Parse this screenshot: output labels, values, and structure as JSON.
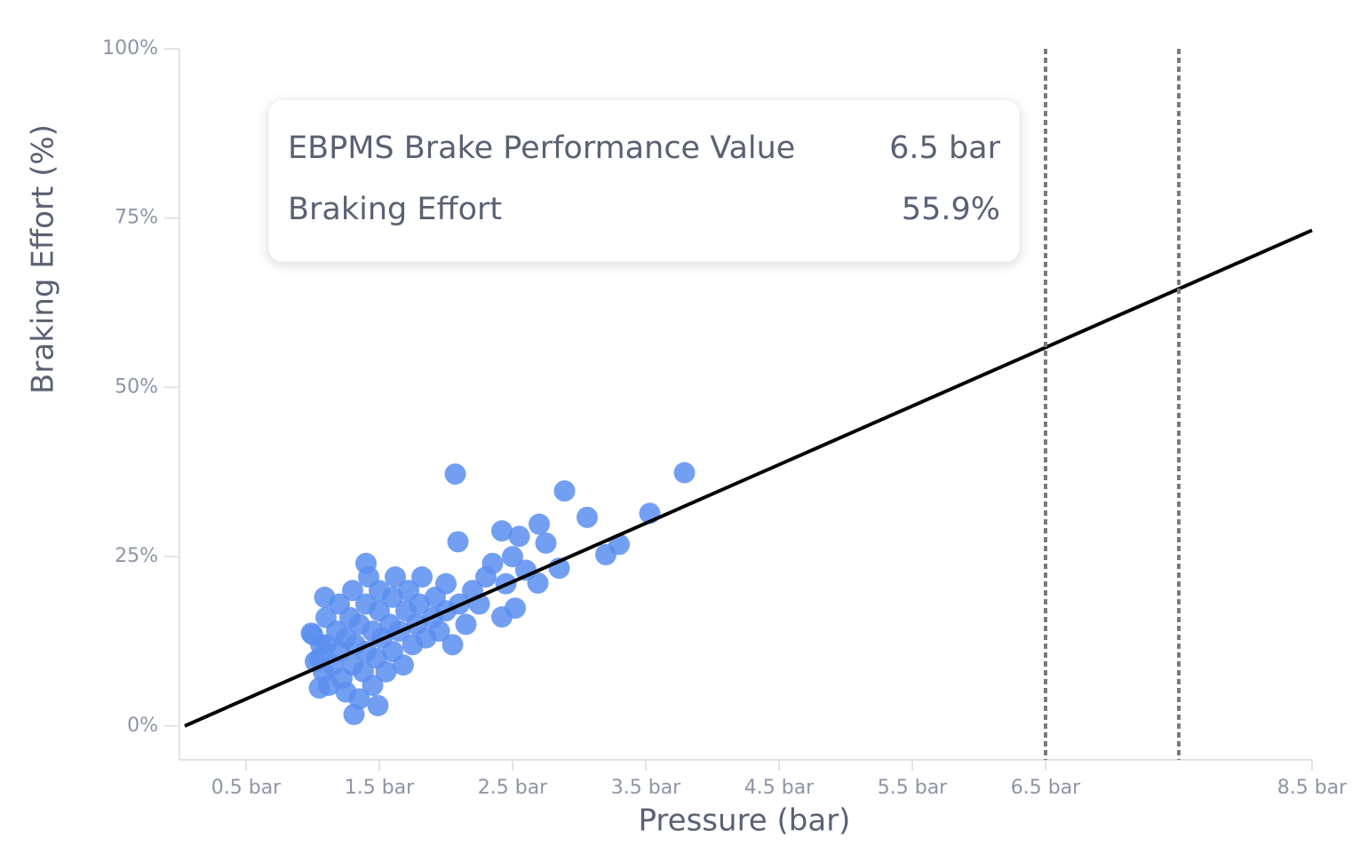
{
  "chart_data": {
    "type": "scatter",
    "x_label": "Pressure (bar)",
    "y_label": "Braking Effort (%)",
    "xlim": [
      0,
      8.5
    ],
    "ylim": [
      -5,
      100
    ],
    "xticks": [
      {
        "value": 0.5,
        "label": "0.5 bar"
      },
      {
        "value": 1.5,
        "label": "1.5 bar"
      },
      {
        "value": 2.5,
        "label": "2.5 bar"
      },
      {
        "value": 3.5,
        "label": "3.5 bar"
      },
      {
        "value": 4.5,
        "label": "4.5 bar"
      },
      {
        "value": 5.5,
        "label": "5.5 bar"
      },
      {
        "value": 6.5,
        "label": "6.5 bar"
      },
      {
        "value": 8.5,
        "label": "8.5 bar"
      }
    ],
    "yticks": [
      {
        "value": 0,
        "label": "0%"
      },
      {
        "value": 25,
        "label": "25%"
      },
      {
        "value": 50,
        "label": "50%"
      },
      {
        "value": 75,
        "label": "75%"
      },
      {
        "value": 100,
        "label": "100%"
      }
    ],
    "points": {
      "color": "#5a8ef0",
      "x": [
        1.0,
        1.02,
        1.05,
        1.06,
        1.08,
        1.1,
        1.1,
        1.12,
        1.15,
        1.18,
        1.2,
        1.2,
        1.22,
        1.25,
        1.25,
        1.28,
        1.3,
        1.3,
        1.32,
        1.35,
        1.35,
        1.38,
        1.4,
        1.4,
        1.42,
        1.45,
        1.45,
        1.48,
        1.5,
        1.5,
        1.52,
        1.55,
        1.58,
        1.6,
        1.6,
        1.62,
        1.65,
        1.68,
        1.7,
        1.72,
        1.75,
        1.78,
        1.8,
        1.82,
        1.85,
        1.9,
        1.92,
        1.95,
        2.0,
        2.0,
        2.05,
        2.1,
        2.15,
        2.2,
        2.25,
        2.3,
        2.35,
        2.45,
        2.5,
        2.55,
        2.6,
        2.75,
        2.07,
        3.79,
        2.89,
        3.53,
        3.06,
        3.3,
        3.2,
        2.7,
        2.42,
        2.09,
        2.85,
        2.69,
        2.52,
        2.42,
        1.4,
        1.09,
        0.99,
        1.31,
        1.49,
        1.05
      ],
      "values": [
        13.5,
        9.5,
        10,
        12,
        8,
        12,
        16,
        6,
        9,
        14,
        11,
        18,
        7,
        5,
        13,
        16,
        9,
        20,
        12,
        4,
        15,
        8,
        11,
        18,
        22,
        14,
        6,
        10,
        17,
        20,
        13,
        8,
        15,
        19,
        11,
        22,
        14,
        9,
        17,
        20,
        12,
        15,
        18,
        22,
        13,
        16,
        19,
        14,
        17,
        21,
        12,
        18,
        15,
        20,
        18,
        22,
        24,
        21,
        25,
        28,
        23,
        27,
        37.2,
        37.4,
        34.7,
        31.4,
        30.8,
        26.8,
        25.3,
        29.8,
        28.8,
        27.2,
        23.3,
        21.1,
        17.4,
        16.1,
        24,
        19,
        13.7,
        1.7,
        3,
        5.6
      ]
    },
    "trend_line": {
      "color": "#000000",
      "x": [
        0.04,
        8.5
      ],
      "values": [
        0,
        73.2
      ]
    },
    "reference_lines": {
      "color": "#7a7a7a",
      "x": [
        6.5,
        7.5
      ]
    },
    "tooltip": {
      "rows": [
        {
          "label": "EBPMS Brake Performance Value",
          "value": "6.5 bar"
        },
        {
          "label": "Braking Effort",
          "value": "55.9%"
        }
      ]
    }
  }
}
